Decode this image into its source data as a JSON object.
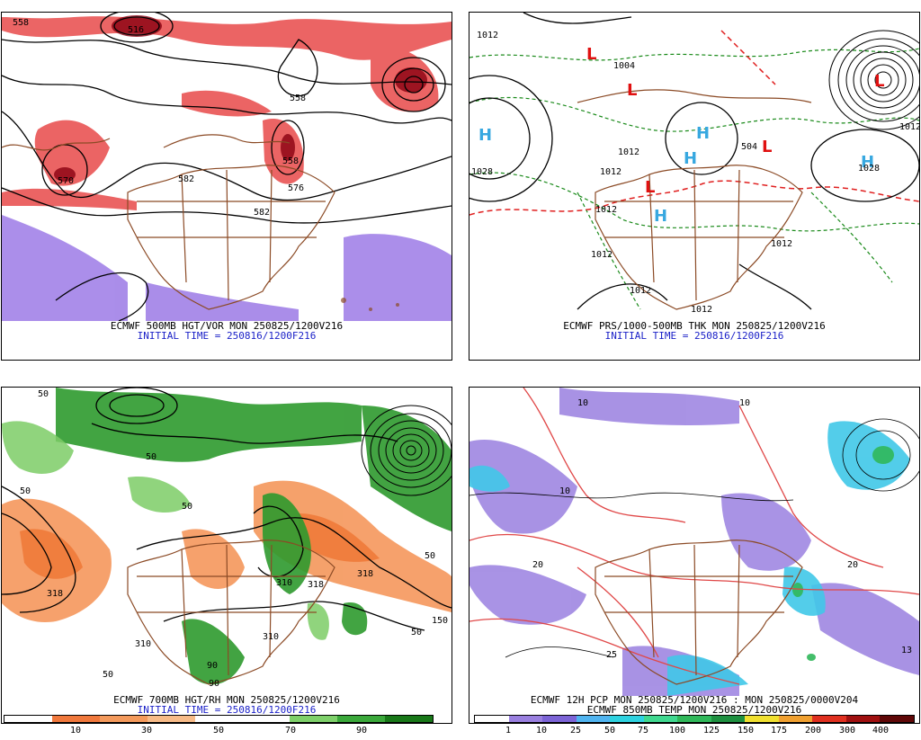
{
  "panels": [
    {
      "id": "500mb",
      "caption": "ECMWF 500MB HGT/VOR MON 250825/1200V216",
      "initial_time": "INITIAL TIME = 250816/1200F216",
      "contour_labels": [
        "558",
        "516",
        "558",
        "558",
        "570",
        "582",
        "576",
        "582"
      ]
    },
    {
      "id": "mslp",
      "caption": "ECMWF PRS/1000-500MB THK MON 250825/1200V216",
      "initial_time": "INITIAL TIME = 250816/1200F216",
      "contour_labels": [
        "1012",
        "1028",
        "1004",
        "1012",
        "1012",
        "1012",
        "1012",
        "1012",
        "1028",
        "1012",
        "504",
        "1012",
        "1012"
      ],
      "highs": [
        "H",
        "H",
        "H",
        "H",
        "H"
      ],
      "lows": [
        "L",
        "L",
        "L",
        "L",
        "L"
      ]
    },
    {
      "id": "700mb",
      "caption": "ECMWF 700MB HGT/RH MON 250825/1200V216",
      "initial_time": "INITIAL TIME = 250816/1200F216",
      "contour_labels": [
        "50",
        "50",
        "50",
        "310",
        "318",
        "318",
        "318",
        "310",
        "50",
        "90",
        "50",
        "150",
        "310",
        "50",
        "50",
        "90"
      ],
      "legend": {
        "ticks": [
          "10",
          "30",
          "50",
          "70",
          "90"
        ],
        "colors": [
          "#ffffff",
          "#f0783c",
          "#f49a5c",
          "#f7bb88",
          "#ffffff",
          "#ffffff",
          "#7ed06a",
          "#3aa83a",
          "#187818"
        ]
      }
    },
    {
      "id": "precip",
      "caption": "ECMWF 12H PCP MON 250825/1200V216 : MON 250825/0000V204",
      "caption2": "ECMWF 850MB TEMP MON 250825/1200V216",
      "contour_labels": [
        "10",
        "10",
        "20",
        "25",
        "20",
        "13",
        "10"
      ],
      "legend": {
        "ticks": [
          "1",
          "10",
          "25",
          "50",
          "75",
          "100",
          "125",
          "150",
          "175",
          "200",
          "300",
          "400"
        ],
        "colors": [
          "#ffffff",
          "#9a80e0",
          "#7c64d6",
          "#50b4f0",
          "#2ed2e0",
          "#40d890",
          "#30b85a",
          "#1e9040",
          "#f0e030",
          "#f0a030",
          "#e03020",
          "#a01010",
          "#600808"
        ]
      }
    }
  ]
}
